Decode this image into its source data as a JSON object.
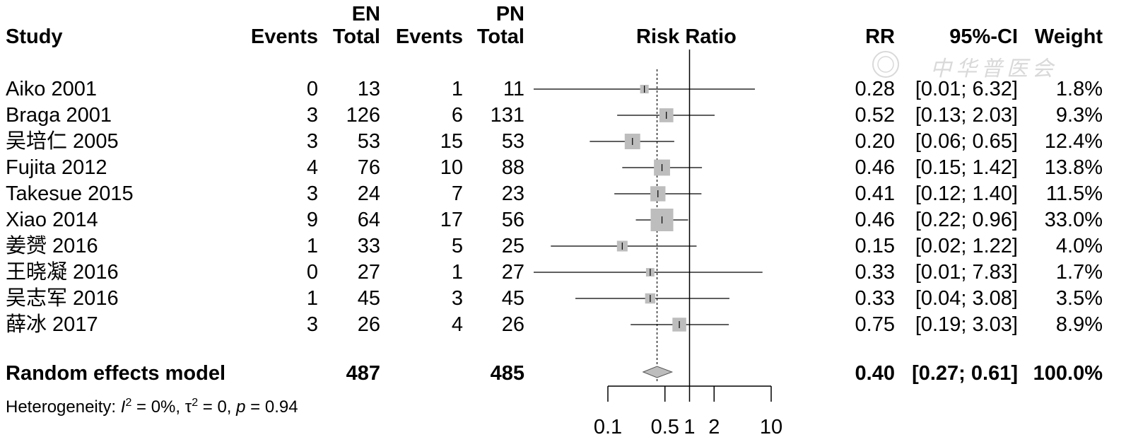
{
  "headers": {
    "group1": "EN",
    "group2": "PN",
    "study": "Study",
    "events": "Events",
    "total": "Total",
    "plot": "Risk Ratio",
    "rr": "RR",
    "ci": "95%-CI",
    "weight": "Weight"
  },
  "watermark": "中华普医会",
  "rows": [
    {
      "study": "Aiko 2001",
      "en_events": "0",
      "en_total": "13",
      "pn_events": "1",
      "pn_total": "11",
      "rr_text": "0.28",
      "ci_text": "[0.01; 6.32]",
      "weight_text": "1.8%"
    },
    {
      "study": "Braga 2001",
      "en_events": "3",
      "en_total": "126",
      "pn_events": "6",
      "pn_total": "131",
      "rr_text": "0.52",
      "ci_text": "[0.13; 2.03]",
      "weight_text": "9.3%"
    },
    {
      "study": "吴培仁 2005",
      "en_events": "3",
      "en_total": "53",
      "pn_events": "15",
      "pn_total": "53",
      "rr_text": "0.20",
      "ci_text": "[0.06; 0.65]",
      "weight_text": "12.4%"
    },
    {
      "study": "Fujita 2012",
      "en_events": "4",
      "en_total": "76",
      "pn_events": "10",
      "pn_total": "88",
      "rr_text": "0.46",
      "ci_text": "[0.15; 1.42]",
      "weight_text": "13.8%"
    },
    {
      "study": "Takesue 2015",
      "en_events": "3",
      "en_total": "24",
      "pn_events": "7",
      "pn_total": "23",
      "rr_text": "0.41",
      "ci_text": "[0.12; 1.40]",
      "weight_text": "11.5%"
    },
    {
      "study": "Xiao 2014",
      "en_events": "9",
      "en_total": "64",
      "pn_events": "17",
      "pn_total": "56",
      "rr_text": "0.46",
      "ci_text": "[0.22; 0.96]",
      "weight_text": "33.0%"
    },
    {
      "study": "姜赟 2016",
      "en_events": "1",
      "en_total": "33",
      "pn_events": "5",
      "pn_total": "25",
      "rr_text": "0.15",
      "ci_text": "[0.02; 1.22]",
      "weight_text": "4.0%"
    },
    {
      "study": "王晓凝 2016",
      "en_events": "0",
      "en_total": "27",
      "pn_events": "1",
      "pn_total": "27",
      "rr_text": "0.33",
      "ci_text": "[0.01; 7.83]",
      "weight_text": "1.7%"
    },
    {
      "study": "吴志军 2016",
      "en_events": "1",
      "en_total": "45",
      "pn_events": "3",
      "pn_total": "45",
      "rr_text": "0.33",
      "ci_text": "[0.04; 3.08]",
      "weight_text": "3.5%"
    },
    {
      "study": "薛冰 2017",
      "en_events": "3",
      "en_total": "26",
      "pn_events": "4",
      "pn_total": "26",
      "rr_text": "0.75",
      "ci_text": "[0.19; 3.03]",
      "weight_text": "8.9%"
    }
  ],
  "summary": {
    "label": "Random effects model",
    "en_total": "487",
    "pn_total": "485",
    "rr_text": "0.40",
    "ci_text": "[0.27; 0.61]",
    "weight_text": "100.0%"
  },
  "heterogeneity": {
    "prefix": "Heterogeneity: ",
    "i_sym": "I",
    "sup2": "2",
    "i_val": " = 0%, ",
    "tau_sym": "τ",
    "tau_val": " = 0, ",
    "p_sym": "p",
    "p_val": " = 0.94"
  },
  "chart_data": {
    "type": "forest",
    "title": "Risk Ratio",
    "xscale": "log",
    "xlim": [
      0.1,
      10
    ],
    "null_value": 1,
    "pooled_estimate": 0.4,
    "pooled_ci": [
      0.27,
      0.61
    ],
    "ticks": [
      {
        "value": 0.1,
        "label": "0.1"
      },
      {
        "value": 0.5,
        "label": "0.5"
      },
      {
        "value": 1,
        "label": "1"
      },
      {
        "value": 2,
        "label": "2"
      },
      {
        "value": 10,
        "label": "10"
      }
    ],
    "studies": [
      {
        "name": "Aiko 2001",
        "rr": 0.28,
        "lo": 0.01,
        "hi": 6.32,
        "weight": 1.8
      },
      {
        "name": "Braga 2001",
        "rr": 0.52,
        "lo": 0.13,
        "hi": 2.03,
        "weight": 9.3
      },
      {
        "name": "吴培仁 2005",
        "rr": 0.2,
        "lo": 0.06,
        "hi": 0.65,
        "weight": 12.4
      },
      {
        "name": "Fujita 2012",
        "rr": 0.46,
        "lo": 0.15,
        "hi": 1.42,
        "weight": 13.8
      },
      {
        "name": "Takesue 2015",
        "rr": 0.41,
        "lo": 0.12,
        "hi": 1.4,
        "weight": 11.5
      },
      {
        "name": "Xiao 2014",
        "rr": 0.46,
        "lo": 0.22,
        "hi": 0.96,
        "weight": 33.0
      },
      {
        "name": "姜赟 2016",
        "rr": 0.15,
        "lo": 0.02,
        "hi": 1.22,
        "weight": 4.0
      },
      {
        "name": "王晓凝 2016",
        "rr": 0.33,
        "lo": 0.01,
        "hi": 7.83,
        "weight": 1.7
      },
      {
        "name": "吴志军 2016",
        "rr": 0.33,
        "lo": 0.04,
        "hi": 3.08,
        "weight": 3.5
      },
      {
        "name": "薛冰 2017",
        "rr": 0.75,
        "lo": 0.19,
        "hi": 3.03,
        "weight": 8.9
      }
    ]
  }
}
